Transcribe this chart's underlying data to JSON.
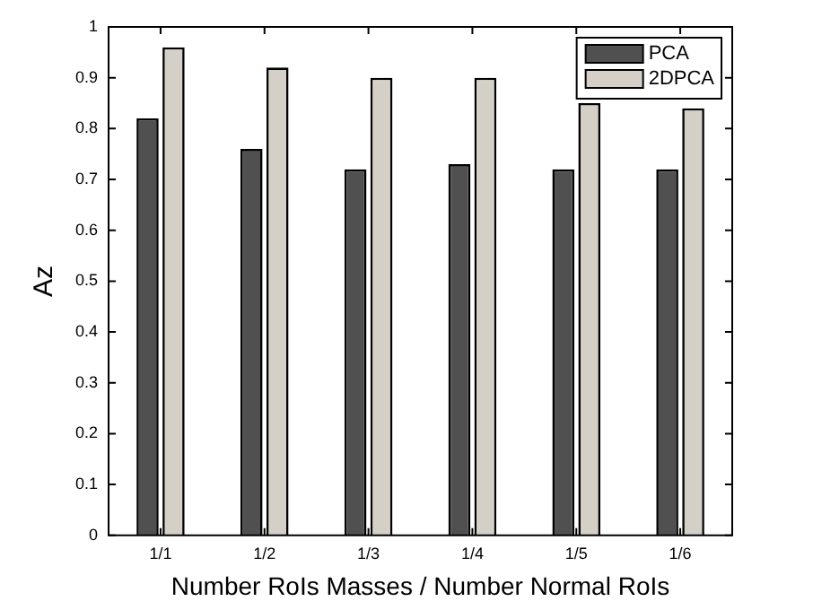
{
  "chart_data": {
    "type": "bar",
    "xlabel": "Number RoIs Masses / Number Normal RoIs",
    "ylabel": "Az",
    "categories": [
      "1/1",
      "1/2",
      "1/3",
      "1/4",
      "1/5",
      "1/6"
    ],
    "series": [
      {
        "name": "PCA",
        "color": "#505050",
        "values": [
          0.82,
          0.76,
          0.72,
          0.73,
          0.72,
          0.72
        ]
      },
      {
        "name": "2DPCA",
        "color": "#d4d0c8",
        "values": [
          0.96,
          0.92,
          0.9,
          0.9,
          0.85,
          0.84
        ]
      }
    ],
    "ylim": [
      0,
      1
    ],
    "yticks": [
      0,
      0.1,
      0.2,
      0.3,
      0.4,
      0.5,
      0.6,
      0.7,
      0.8,
      0.9,
      1
    ],
    "grid": false,
    "legend": "top right"
  }
}
